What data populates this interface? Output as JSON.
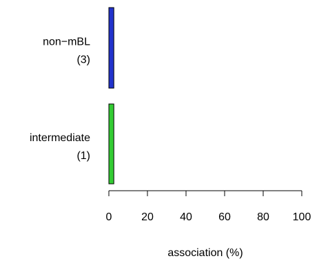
{
  "chart_data": {
    "type": "bar",
    "orientation": "horizontal",
    "categories": [
      {
        "name": "non−mBL",
        "count": "(3)"
      },
      {
        "name": "intermediate",
        "count": "(1)"
      }
    ],
    "values": [
      1.5,
      1.5
    ],
    "colors": [
      "#2233cc",
      "#33cc33"
    ],
    "xlabel": "association (%)",
    "xlim": [
      0,
      100
    ],
    "xticks": [
      0,
      20,
      40,
      60,
      80,
      100
    ],
    "xtick_labels": [
      "0",
      "20",
      "40",
      "60",
      "80",
      "100"
    ],
    "grid": false,
    "legend": "none"
  }
}
